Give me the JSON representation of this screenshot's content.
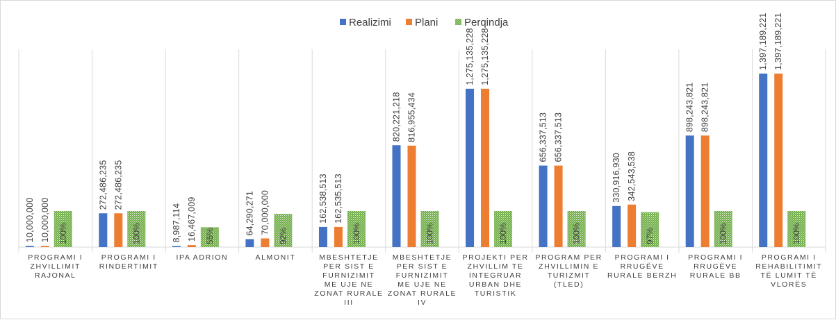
{
  "colors": {
    "realizimi": "#4472c4",
    "plani": "#ed7d31",
    "perqindja": "#70ad47",
    "gridline": "#d9d9d9",
    "text": "#404040"
  },
  "chart_data": {
    "type": "bar",
    "title": "",
    "legend_position": "top",
    "grid": "vertical category separators",
    "categories": [
      [
        "PROGRAMI I",
        "ZHVILLIMIT",
        "RAJONAL"
      ],
      [
        "PROGRAMI I",
        "RINDERTIMIT"
      ],
      [
        "IPA ADRION"
      ],
      [
        "ALMONIT"
      ],
      [
        "MBESHTETJE",
        "PER SIST E",
        "FURNIZIMIT",
        "ME UJE NE",
        "ZONAT RURALE",
        "III"
      ],
      [
        "MBESHTETJE",
        "PER SIST E",
        "FURNIZIMIT",
        "ME UJE NE",
        "ZONAT RURALE",
        "IV"
      ],
      [
        "PROJEKTI PER",
        "ZHVILLIM TE",
        "INTEGRUAR",
        "URBAN DHE",
        "TURISTIK"
      ],
      [
        "PROGRAM PER",
        "ZHVILLIMIN E",
        "TURIZMIT",
        "(TLED)"
      ],
      [
        "PROGRAMI I",
        "RRUGËVE",
        "RURALE BERZH"
      ],
      [
        "PROGRAMI I",
        "RRUGËVE",
        "RURALE BB"
      ],
      [
        "PROGRAMI I",
        "REHABILITIMIT",
        "TË LUMIT TË",
        "VLORËS"
      ]
    ],
    "series": [
      {
        "name": "Realizimi",
        "values": [
          10000000,
          272486235,
          8987114,
          64290271,
          162538513,
          820221218,
          1275135228,
          656337513,
          330916930,
          898243821,
          1397189221
        ],
        "labels": [
          "10,000,000",
          "272,486,235",
          "8,987,114",
          "64,290,271",
          "162,538,513",
          "820,221,218",
          "1,275,135,228",
          "656,337,513",
          "330,916,930",
          "898,243,821",
          "1,397,189,221"
        ]
      },
      {
        "name": "Plani",
        "values": [
          10000000,
          272486235,
          16467009,
          70000000,
          162535513,
          816955434,
          1275135228,
          656337513,
          342543538,
          898243821,
          1397189221
        ],
        "labels": [
          "10,000,000",
          "272,486,235",
          "16,467,009",
          "70,000,000",
          "162,535,513",
          "816,955,434",
          "1,275,135,228",
          "656,337,513",
          "342,543,538",
          "898,243,821",
          "1,397,189,221"
        ]
      },
      {
        "name": "Perqindja",
        "values": [
          100,
          100,
          55,
          92,
          100,
          100,
          100,
          100,
          97,
          100,
          100
        ],
        "labels": [
          "100%",
          "100%",
          "55%",
          "92%",
          "100%",
          "100%",
          "100%",
          "100%",
          "97%",
          "100%",
          "100%"
        ]
      }
    ]
  }
}
